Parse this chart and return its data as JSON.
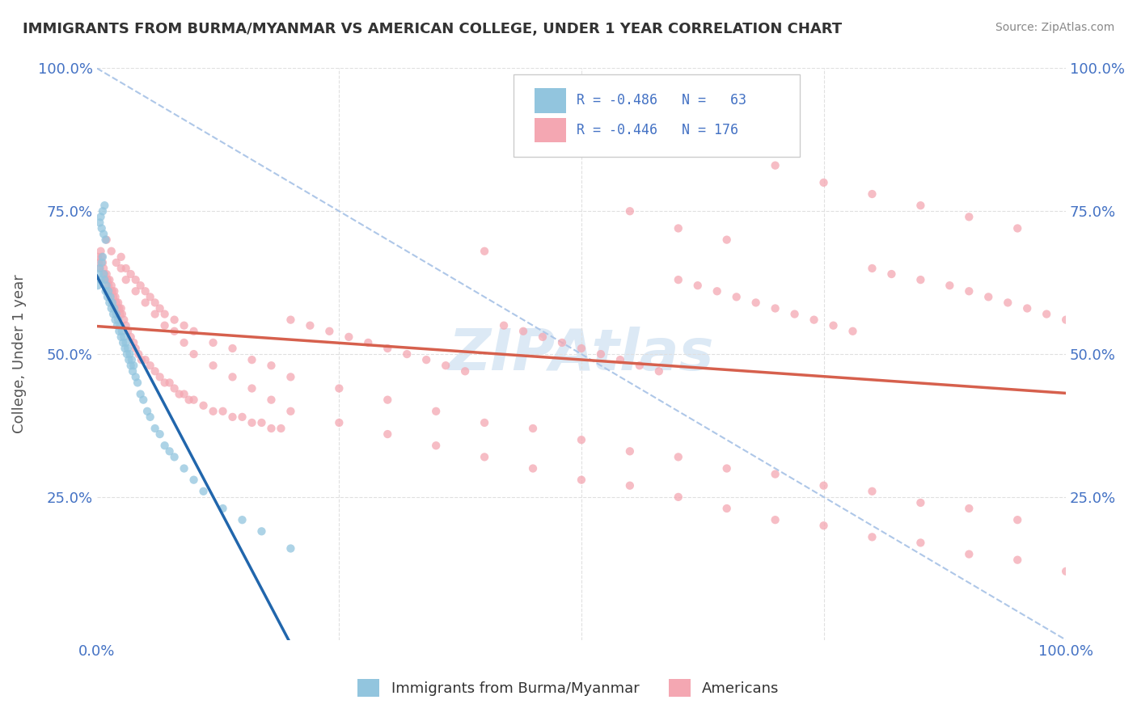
{
  "title": "IMMIGRANTS FROM BURMA/MYANMAR VS AMERICAN COLLEGE, UNDER 1 YEAR CORRELATION CHART",
  "source": "Source: ZipAtlas.com",
  "ylabel": "College, Under 1 year",
  "xlim": [
    0.0,
    1.0
  ],
  "ylim": [
    0.0,
    1.0
  ],
  "color_blue": "#92c5de",
  "color_pink": "#f4a7b2",
  "color_blue_line": "#2166ac",
  "color_pink_line": "#d6604d",
  "color_diag_line": "#aec7e8",
  "background_color": "#ffffff",
  "grid_color": "#e0e0e0",
  "label_color": "#4472c4",
  "watermark_color": "#dce9f5",
  "title_color": "#333333",
  "source_color": "#888888",
  "blue_scatter_x": [
    0.001,
    0.002,
    0.003,
    0.004,
    0.005,
    0.006,
    0.007,
    0.008,
    0.009,
    0.01,
    0.011,
    0.012,
    0.013,
    0.014,
    0.015,
    0.016,
    0.017,
    0.018,
    0.019,
    0.02,
    0.021,
    0.022,
    0.023,
    0.024,
    0.025,
    0.026,
    0.027,
    0.028,
    0.029,
    0.03,
    0.031,
    0.032,
    0.033,
    0.034,
    0.035,
    0.036,
    0.037,
    0.038,
    0.04,
    0.042,
    0.045,
    0.048,
    0.052,
    0.055,
    0.06,
    0.065,
    0.07,
    0.075,
    0.08,
    0.09,
    0.1,
    0.11,
    0.13,
    0.15,
    0.17,
    0.2,
    0.003,
    0.004,
    0.005,
    0.006,
    0.007,
    0.008,
    0.009
  ],
  "blue_scatter_y": [
    0.62,
    0.64,
    0.65,
    0.63,
    0.66,
    0.67,
    0.64,
    0.63,
    0.61,
    0.62,
    0.6,
    0.61,
    0.59,
    0.6,
    0.58,
    0.59,
    0.57,
    0.58,
    0.56,
    0.57,
    0.55,
    0.56,
    0.54,
    0.55,
    0.53,
    0.54,
    0.52,
    0.53,
    0.51,
    0.52,
    0.5,
    0.51,
    0.49,
    0.5,
    0.48,
    0.49,
    0.47,
    0.48,
    0.46,
    0.45,
    0.43,
    0.42,
    0.4,
    0.39,
    0.37,
    0.36,
    0.34,
    0.33,
    0.32,
    0.3,
    0.28,
    0.26,
    0.23,
    0.21,
    0.19,
    0.16,
    0.73,
    0.74,
    0.72,
    0.75,
    0.71,
    0.76,
    0.7
  ],
  "pink_scatter_x": [
    0.001,
    0.002,
    0.003,
    0.004,
    0.005,
    0.006,
    0.007,
    0.008,
    0.009,
    0.01,
    0.011,
    0.012,
    0.013,
    0.014,
    0.015,
    0.016,
    0.017,
    0.018,
    0.019,
    0.02,
    0.021,
    0.022,
    0.023,
    0.024,
    0.025,
    0.026,
    0.028,
    0.03,
    0.032,
    0.035,
    0.038,
    0.04,
    0.043,
    0.046,
    0.05,
    0.055,
    0.06,
    0.065,
    0.07,
    0.075,
    0.08,
    0.085,
    0.09,
    0.095,
    0.1,
    0.11,
    0.12,
    0.13,
    0.14,
    0.15,
    0.16,
    0.17,
    0.18,
    0.19,
    0.2,
    0.22,
    0.24,
    0.26,
    0.28,
    0.3,
    0.32,
    0.34,
    0.36,
    0.38,
    0.4,
    0.42,
    0.44,
    0.46,
    0.48,
    0.5,
    0.52,
    0.54,
    0.56,
    0.58,
    0.6,
    0.62,
    0.64,
    0.66,
    0.68,
    0.7,
    0.72,
    0.74,
    0.76,
    0.78,
    0.8,
    0.82,
    0.85,
    0.88,
    0.9,
    0.92,
    0.94,
    0.96,
    0.98,
    1.0,
    0.025,
    0.03,
    0.035,
    0.04,
    0.045,
    0.05,
    0.055,
    0.06,
    0.065,
    0.07,
    0.08,
    0.09,
    0.1,
    0.12,
    0.14,
    0.16,
    0.18,
    0.2,
    0.25,
    0.3,
    0.35,
    0.4,
    0.45,
    0.5,
    0.55,
    0.6,
    0.65,
    0.7,
    0.75,
    0.8,
    0.85,
    0.9,
    0.95,
    0.01,
    0.015,
    0.02,
    0.025,
    0.03,
    0.04,
    0.05,
    0.06,
    0.07,
    0.08,
    0.09,
    0.1,
    0.12,
    0.14,
    0.16,
    0.18,
    0.2,
    0.25,
    0.3,
    0.35,
    0.4,
    0.45,
    0.5,
    0.55,
    0.6,
    0.65,
    0.7,
    0.75,
    0.8,
    0.85,
    0.9,
    0.95,
    1.0,
    0.55,
    0.6,
    0.65,
    0.7,
    0.75,
    0.8,
    0.85,
    0.9,
    0.95
  ],
  "pink_scatter_y": [
    0.67,
    0.66,
    0.65,
    0.68,
    0.67,
    0.66,
    0.65,
    0.64,
    0.63,
    0.64,
    0.63,
    0.62,
    0.63,
    0.61,
    0.62,
    0.61,
    0.6,
    0.61,
    0.6,
    0.59,
    0.58,
    0.59,
    0.58,
    0.57,
    0.58,
    0.57,
    0.56,
    0.55,
    0.54,
    0.53,
    0.52,
    0.51,
    0.5,
    0.49,
    0.49,
    0.48,
    0.47,
    0.46,
    0.45,
    0.45,
    0.44,
    0.43,
    0.43,
    0.42,
    0.42,
    0.41,
    0.4,
    0.4,
    0.39,
    0.39,
    0.38,
    0.38,
    0.37,
    0.37,
    0.56,
    0.55,
    0.54,
    0.53,
    0.52,
    0.51,
    0.5,
    0.49,
    0.48,
    0.47,
    0.68,
    0.55,
    0.54,
    0.53,
    0.52,
    0.51,
    0.5,
    0.49,
    0.48,
    0.47,
    0.63,
    0.62,
    0.61,
    0.6,
    0.59,
    0.58,
    0.57,
    0.56,
    0.55,
    0.54,
    0.65,
    0.64,
    0.63,
    0.62,
    0.61,
    0.6,
    0.59,
    0.58,
    0.57,
    0.56,
    0.67,
    0.65,
    0.64,
    0.63,
    0.62,
    0.61,
    0.6,
    0.59,
    0.58,
    0.57,
    0.56,
    0.55,
    0.54,
    0.52,
    0.51,
    0.49,
    0.48,
    0.46,
    0.44,
    0.42,
    0.4,
    0.38,
    0.37,
    0.35,
    0.33,
    0.32,
    0.3,
    0.29,
    0.27,
    0.26,
    0.24,
    0.23,
    0.21,
    0.7,
    0.68,
    0.66,
    0.65,
    0.63,
    0.61,
    0.59,
    0.57,
    0.55,
    0.54,
    0.52,
    0.5,
    0.48,
    0.46,
    0.44,
    0.42,
    0.4,
    0.38,
    0.36,
    0.34,
    0.32,
    0.3,
    0.28,
    0.27,
    0.25,
    0.23,
    0.21,
    0.2,
    0.18,
    0.17,
    0.15,
    0.14,
    0.12,
    0.75,
    0.72,
    0.7,
    0.83,
    0.8,
    0.78,
    0.76,
    0.74,
    0.72
  ]
}
